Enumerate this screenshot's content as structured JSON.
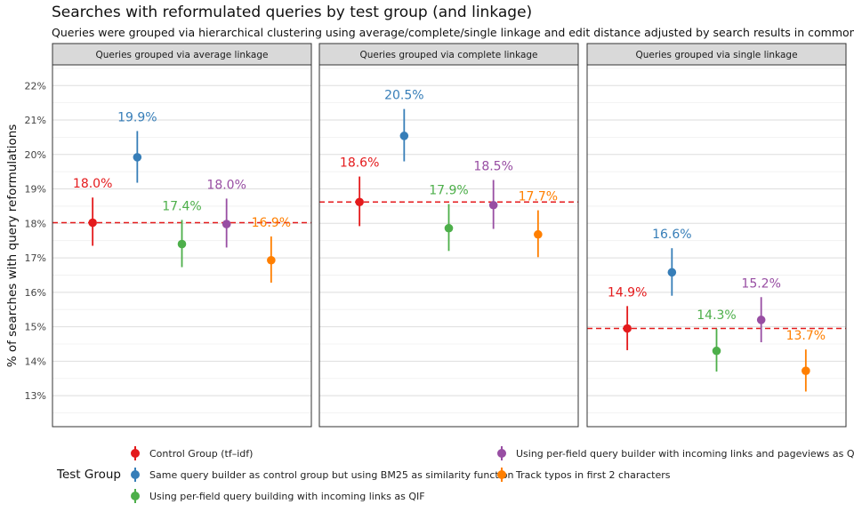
{
  "title": "Searches with reformulated queries by test group (and linkage)",
  "subtitle": "Queries were grouped via hierarchical clustering using average/complete/single linkage and edit distance adjusted by search results in common",
  "chart_data": {
    "type": "pointrange",
    "ylabel": "% of searches with query reformulations",
    "ylim": [
      12.1,
      22.6
    ],
    "yticks": [
      13,
      14,
      15,
      16,
      17,
      18,
      19,
      20,
      21,
      22
    ],
    "ytick_labels": [
      "13%",
      "14%",
      "15%",
      "16%",
      "17%",
      "18%",
      "19%",
      "20%",
      "21%",
      "22%"
    ],
    "legend": {
      "title": "Test Group",
      "position": "bottom",
      "groups": [
        {
          "label": "Control Group (tf–idf)",
          "color": "#e41a1c"
        },
        {
          "label": "Same query builder as control group but using BM25 as similarity function",
          "color": "#377eb8"
        },
        {
          "label": "Using per-field query building with incoming links as QIF",
          "color": "#4daf4a"
        },
        {
          "label": "Using per-field query builder with incoming links and pageviews as QIFs",
          "color": "#984ea3"
        },
        {
          "label": "Track typos in first 2 characters",
          "color": "#ff7f00"
        }
      ]
    },
    "panels": [
      {
        "strip": "Queries grouped via average linkage",
        "baseline": 18.02,
        "points": [
          {
            "value": 18.02,
            "low": 17.35,
            "high": 18.75,
            "label": "18.0%"
          },
          {
            "value": 19.92,
            "low": 19.18,
            "high": 20.68,
            "label": "19.9%"
          },
          {
            "value": 17.4,
            "low": 16.73,
            "high": 18.1,
            "label": "17.4%"
          },
          {
            "value": 17.98,
            "low": 17.3,
            "high": 18.72,
            "label": "18.0%"
          },
          {
            "value": 16.93,
            "low": 16.28,
            "high": 17.62,
            "label": "16.9%"
          }
        ]
      },
      {
        "strip": "Queries grouped via complete linkage",
        "baseline": 18.62,
        "points": [
          {
            "value": 18.62,
            "low": 17.92,
            "high": 19.36,
            "label": "18.6%"
          },
          {
            "value": 20.54,
            "low": 19.8,
            "high": 21.32,
            "label": "20.5%"
          },
          {
            "value": 17.86,
            "low": 17.2,
            "high": 18.56,
            "label": "17.9%"
          },
          {
            "value": 18.53,
            "low": 17.84,
            "high": 19.26,
            "label": "18.5%"
          },
          {
            "value": 17.68,
            "low": 17.02,
            "high": 18.38,
            "label": "17.7%"
          }
        ]
      },
      {
        "strip": "Queries grouped via single linkage",
        "baseline": 14.95,
        "points": [
          {
            "value": 14.95,
            "low": 14.32,
            "high": 15.6,
            "label": "14.9%"
          },
          {
            "value": 16.58,
            "low": 15.9,
            "high": 17.28,
            "label": "16.6%"
          },
          {
            "value": 14.3,
            "low": 13.7,
            "high": 14.94,
            "label": "14.3%"
          },
          {
            "value": 15.2,
            "low": 14.55,
            "high": 15.86,
            "label": "15.2%"
          },
          {
            "value": 13.72,
            "low": 13.12,
            "high": 14.34,
            "label": "13.7%"
          }
        ]
      }
    ]
  }
}
